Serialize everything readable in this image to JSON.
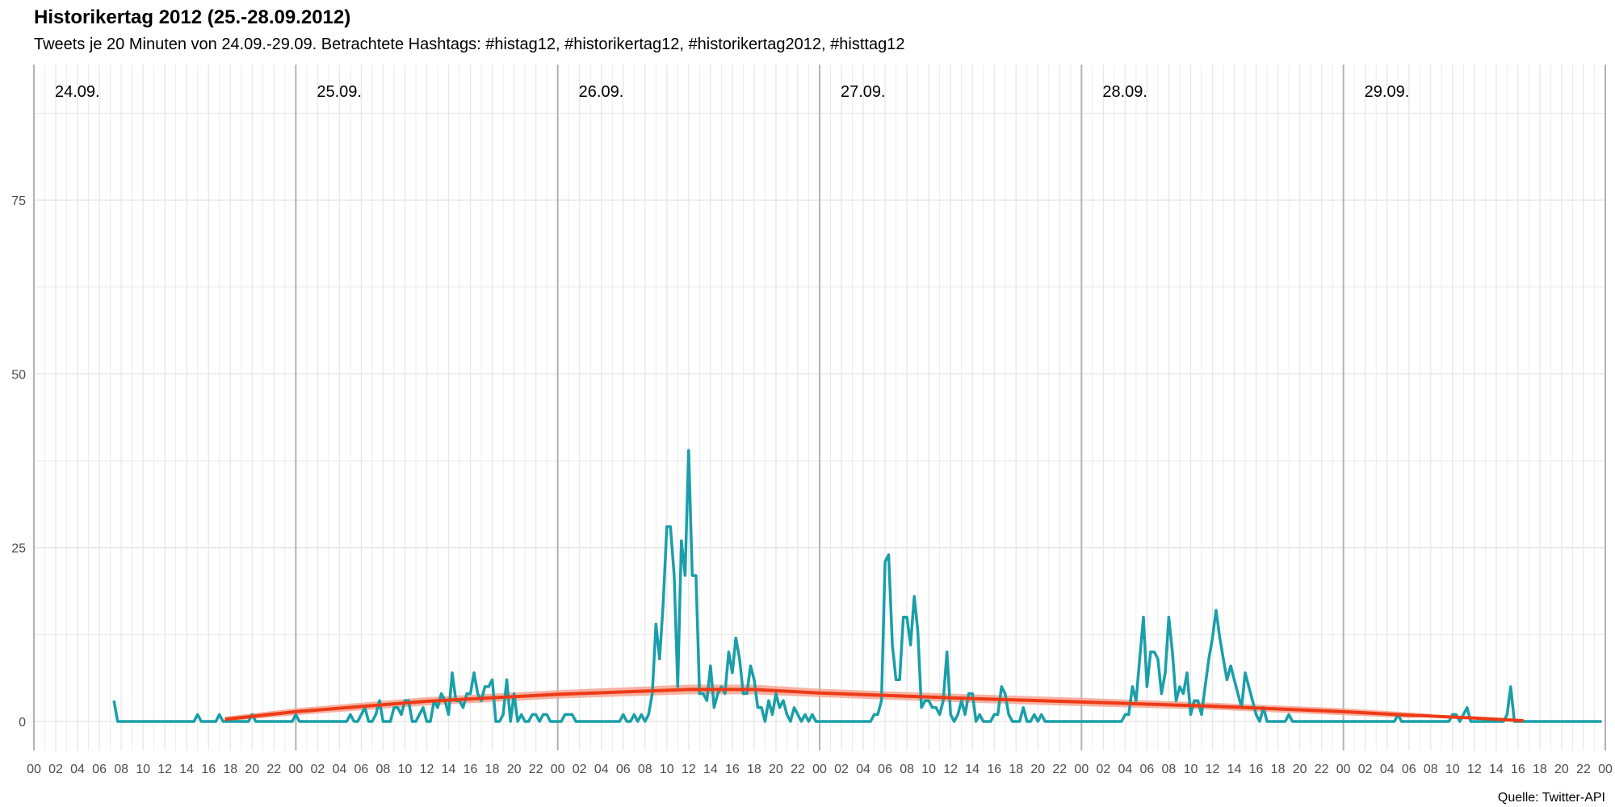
{
  "title": "Historikertag 2012 (25.-28.09.2012)",
  "subtitle": "Tweets je 20 Minuten von 24.09.-29.09. Betrachtete Hashtags: #histag12, #historikertag12, #historikertag2012, #histtag12",
  "caption": "Quelle: Twitter-API",
  "colors": {
    "series": "#1a9fa8",
    "trend": "#ee3a16",
    "band": "#f4a08c",
    "grid": "#e8e8e8",
    "day_line": "#b3b3b3"
  },
  "chart_data": {
    "type": "line",
    "x_unit": "hour",
    "x_range_hours": [
      0,
      144
    ],
    "ylim": [
      0,
      90
    ],
    "y_ticks": [
      0,
      25,
      50,
      75
    ],
    "x_tick_labels": [
      "00",
      "02",
      "04",
      "06",
      "08",
      "10",
      "12",
      "14",
      "16",
      "18",
      "20",
      "22"
    ],
    "day_labels": [
      "24.09.",
      "25.09.",
      "26.09.",
      "27.09.",
      "28.09.",
      "29.09."
    ],
    "series": [
      {
        "points": [
          [
            7.33,
            3
          ],
          [
            7.67,
            0
          ],
          [
            8,
            0
          ],
          [
            9,
            0
          ],
          [
            10,
            0
          ],
          [
            11,
            0
          ],
          [
            12,
            0
          ],
          [
            13,
            0
          ],
          [
            14,
            0
          ],
          [
            14.67,
            0
          ],
          [
            15,
            1
          ],
          [
            15.33,
            0
          ],
          [
            16,
            0
          ],
          [
            16.67,
            0
          ],
          [
            17,
            1
          ],
          [
            17.33,
            0
          ],
          [
            18,
            0
          ],
          [
            19,
            0
          ],
          [
            19.67,
            0
          ],
          [
            20,
            1
          ],
          [
            20.33,
            0
          ],
          [
            21,
            0
          ],
          [
            22,
            0
          ],
          [
            23,
            0
          ],
          [
            23.67,
            0
          ],
          [
            24,
            1
          ],
          [
            24.33,
            0
          ],
          [
            25,
            0
          ],
          [
            26,
            0
          ],
          [
            27,
            0
          ],
          [
            28,
            0
          ],
          [
            28.67,
            0
          ],
          [
            29,
            1
          ],
          [
            29.33,
            0
          ],
          [
            29.67,
            0
          ],
          [
            30,
            1
          ],
          [
            30.33,
            2
          ],
          [
            30.67,
            0
          ],
          [
            31,
            0
          ],
          [
            31.33,
            1
          ],
          [
            31.67,
            3
          ],
          [
            32,
            0
          ],
          [
            32.33,
            0
          ],
          [
            32.67,
            0
          ],
          [
            33,
            2
          ],
          [
            33.33,
            2
          ],
          [
            33.67,
            1
          ],
          [
            34,
            3
          ],
          [
            34.33,
            3
          ],
          [
            34.67,
            0
          ],
          [
            35,
            0
          ],
          [
            35.33,
            1
          ],
          [
            35.67,
            2
          ],
          [
            36,
            0
          ],
          [
            36.33,
            0
          ],
          [
            36.67,
            3
          ],
          [
            37,
            2
          ],
          [
            37.33,
            4
          ],
          [
            37.67,
            3
          ],
          [
            38,
            1
          ],
          [
            38.33,
            7
          ],
          [
            38.67,
            3
          ],
          [
            39,
            3
          ],
          [
            39.33,
            2
          ],
          [
            39.67,
            4
          ],
          [
            40,
            4
          ],
          [
            40.33,
            7
          ],
          [
            40.67,
            4
          ],
          [
            41,
            3
          ],
          [
            41.33,
            5
          ],
          [
            41.67,
            5
          ],
          [
            42,
            6
          ],
          [
            42.33,
            0
          ],
          [
            42.67,
            0
          ],
          [
            43,
            1
          ],
          [
            43.33,
            6
          ],
          [
            43.67,
            0
          ],
          [
            44,
            4
          ],
          [
            44.33,
            0
          ],
          [
            44.67,
            1
          ],
          [
            45,
            0
          ],
          [
            45.33,
            0
          ],
          [
            45.67,
            1
          ],
          [
            46,
            1
          ],
          [
            46.33,
            0
          ],
          [
            46.67,
            1
          ],
          [
            47,
            1
          ],
          [
            47.33,
            0
          ],
          [
            47.67,
            0
          ],
          [
            48,
            0
          ],
          [
            48.33,
            0
          ],
          [
            48.67,
            1
          ],
          [
            49,
            1
          ],
          [
            49.33,
            1
          ],
          [
            49.67,
            0
          ],
          [
            50,
            0
          ],
          [
            51,
            0
          ],
          [
            52,
            0
          ],
          [
            53,
            0
          ],
          [
            53.67,
            0
          ],
          [
            54,
            1
          ],
          [
            54.33,
            0
          ],
          [
            54.67,
            0
          ],
          [
            55,
            1
          ],
          [
            55.33,
            0
          ],
          [
            55.67,
            1
          ],
          [
            56,
            0
          ],
          [
            56.33,
            1
          ],
          [
            56.67,
            4
          ],
          [
            57,
            14
          ],
          [
            57.33,
            9
          ],
          [
            57.67,
            17
          ],
          [
            58,
            28
          ],
          [
            58.33,
            28
          ],
          [
            58.67,
            21
          ],
          [
            59,
            5
          ],
          [
            59.33,
            26
          ],
          [
            59.67,
            21
          ],
          [
            60,
            39
          ],
          [
            60.33,
            21
          ],
          [
            60.67,
            21
          ],
          [
            61,
            4
          ],
          [
            61.33,
            4
          ],
          [
            61.67,
            3
          ],
          [
            62,
            8
          ],
          [
            62.33,
            2
          ],
          [
            62.67,
            4
          ],
          [
            63,
            5
          ],
          [
            63.33,
            4
          ],
          [
            63.67,
            10
          ],
          [
            64,
            7
          ],
          [
            64.33,
            12
          ],
          [
            64.67,
            9
          ],
          [
            65,
            4
          ],
          [
            65.33,
            4
          ],
          [
            65.67,
            8
          ],
          [
            66,
            6
          ],
          [
            66.33,
            2
          ],
          [
            66.67,
            2
          ],
          [
            67,
            0
          ],
          [
            67.33,
            3
          ],
          [
            67.67,
            1
          ],
          [
            68,
            4
          ],
          [
            68.33,
            2
          ],
          [
            68.67,
            3
          ],
          [
            69,
            1
          ],
          [
            69.33,
            0
          ],
          [
            69.67,
            2
          ],
          [
            70,
            1
          ],
          [
            70.33,
            0
          ],
          [
            70.67,
            1
          ],
          [
            71,
            0
          ],
          [
            71.33,
            1
          ],
          [
            71.67,
            0
          ],
          [
            72,
            0
          ],
          [
            73,
            0
          ],
          [
            74,
            0
          ],
          [
            75,
            0
          ],
          [
            76,
            0
          ],
          [
            76.67,
            0
          ],
          [
            77,
            1
          ],
          [
            77.33,
            1
          ],
          [
            77.67,
            3
          ],
          [
            78,
            23
          ],
          [
            78.33,
            24
          ],
          [
            78.67,
            11
          ],
          [
            79,
            6
          ],
          [
            79.33,
            6
          ],
          [
            79.67,
            15
          ],
          [
            80,
            15
          ],
          [
            80.33,
            11
          ],
          [
            80.67,
            18
          ],
          [
            81,
            13
          ],
          [
            81.33,
            2
          ],
          [
            81.67,
            3
          ],
          [
            82,
            3
          ],
          [
            82.33,
            2
          ],
          [
            82.67,
            2
          ],
          [
            83,
            1
          ],
          [
            83.33,
            3
          ],
          [
            83.67,
            10
          ],
          [
            84,
            1
          ],
          [
            84.33,
            0
          ],
          [
            84.67,
            1
          ],
          [
            85,
            3
          ],
          [
            85.33,
            1
          ],
          [
            85.67,
            4
          ],
          [
            86,
            4
          ],
          [
            86.33,
            0
          ],
          [
            86.67,
            1
          ],
          [
            87,
            0
          ],
          [
            87.33,
            0
          ],
          [
            87.67,
            0
          ],
          [
            88,
            1
          ],
          [
            88.33,
            1
          ],
          [
            88.67,
            5
          ],
          [
            89,
            4
          ],
          [
            89.33,
            1
          ],
          [
            89.67,
            0
          ],
          [
            90,
            0
          ],
          [
            90.33,
            0
          ],
          [
            90.67,
            2
          ],
          [
            91,
            0
          ],
          [
            91.33,
            0
          ],
          [
            91.67,
            1
          ],
          [
            92,
            0
          ],
          [
            92.33,
            1
          ],
          [
            92.67,
            0
          ],
          [
            93,
            0
          ],
          [
            94,
            0
          ],
          [
            95,
            0
          ],
          [
            96,
            0
          ],
          [
            97,
            0
          ],
          [
            98,
            0
          ],
          [
            99,
            0
          ],
          [
            99.67,
            0
          ],
          [
            100,
            1
          ],
          [
            100.33,
            1
          ],
          [
            100.67,
            5
          ],
          [
            101,
            3
          ],
          [
            101.33,
            9
          ],
          [
            101.67,
            15
          ],
          [
            102,
            5
          ],
          [
            102.33,
            10
          ],
          [
            102.67,
            10
          ],
          [
            103,
            9
          ],
          [
            103.33,
            4
          ],
          [
            103.67,
            7
          ],
          [
            104,
            15
          ],
          [
            104.33,
            10
          ],
          [
            104.67,
            3
          ],
          [
            105,
            5
          ],
          [
            105.33,
            4
          ],
          [
            105.67,
            7
          ],
          [
            106,
            1
          ],
          [
            106.33,
            3
          ],
          [
            106.67,
            3
          ],
          [
            107,
            1
          ],
          [
            107.33,
            5
          ],
          [
            107.67,
            9
          ],
          [
            108,
            12
          ],
          [
            108.33,
            16
          ],
          [
            108.67,
            12
          ],
          [
            109,
            9
          ],
          [
            109.33,
            6
          ],
          [
            109.67,
            8
          ],
          [
            110,
            6
          ],
          [
            110.33,
            4
          ],
          [
            110.67,
            2
          ],
          [
            111,
            7
          ],
          [
            111.33,
            5
          ],
          [
            111.67,
            3
          ],
          [
            112,
            1
          ],
          [
            112.33,
            0
          ],
          [
            112.67,
            2
          ],
          [
            113,
            0
          ],
          [
            113.33,
            0
          ],
          [
            114,
            0
          ],
          [
            114.67,
            0
          ],
          [
            115,
            1
          ],
          [
            115.33,
            0
          ],
          [
            116,
            0
          ],
          [
            117,
            0
          ],
          [
            118,
            0
          ],
          [
            119,
            0
          ],
          [
            120,
            0
          ],
          [
            121,
            0
          ],
          [
            122,
            0
          ],
          [
            123,
            0
          ],
          [
            124,
            0
          ],
          [
            124.67,
            0
          ],
          [
            125,
            1
          ],
          [
            125.33,
            0
          ],
          [
            126,
            0
          ],
          [
            127,
            0
          ],
          [
            128,
            0
          ],
          [
            129,
            0
          ],
          [
            129.67,
            0
          ],
          [
            130,
            1
          ],
          [
            130.33,
            1
          ],
          [
            130.67,
            0
          ],
          [
            131,
            1
          ],
          [
            131.33,
            2
          ],
          [
            131.67,
            0
          ],
          [
            132,
            0
          ],
          [
            133,
            0
          ],
          [
            134,
            0
          ],
          [
            134.67,
            0
          ],
          [
            135,
            1
          ],
          [
            135.33,
            5
          ],
          [
            135.67,
            0
          ],
          [
            136,
            0
          ],
          [
            137,
            0
          ],
          [
            138,
            0
          ],
          [
            139,
            0
          ],
          [
            140,
            0
          ],
          [
            141,
            0
          ],
          [
            142,
            0
          ],
          [
            143,
            0
          ],
          [
            143.67,
            0
          ]
        ]
      }
    ],
    "trend": {
      "points": [
        [
          17.5,
          0.3
        ],
        [
          24,
          1.4
        ],
        [
          36,
          2.9
        ],
        [
          48,
          3.9
        ],
        [
          60,
          4.6
        ],
        [
          66,
          4.6
        ],
        [
          72,
          4.1
        ],
        [
          84,
          3.4
        ],
        [
          96,
          2.8
        ],
        [
          108,
          2.2
        ],
        [
          120,
          1.4
        ],
        [
          126,
          0.9
        ],
        [
          132,
          0.5
        ],
        [
          136.5,
          0.1
        ]
      ],
      "band": [
        [
          17.5,
          0.7
        ],
        [
          24,
          1.9
        ],
        [
          36,
          3.5
        ],
        [
          48,
          4.5
        ],
        [
          60,
          5.3
        ],
        [
          66,
          5.3
        ],
        [
          72,
          4.7
        ],
        [
          84,
          4.0
        ],
        [
          96,
          3.4
        ],
        [
          108,
          2.7
        ],
        [
          120,
          1.9
        ],
        [
          126,
          1.3
        ],
        [
          128,
          1.1
        ]
      ]
    }
  }
}
